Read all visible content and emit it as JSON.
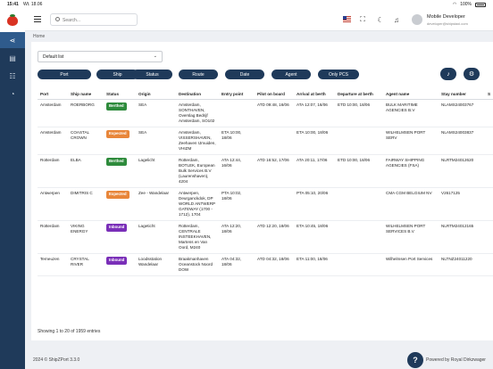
{
  "status_bar": {
    "time": "15:41",
    "date": "Wt. 18.06",
    "battery": "100%"
  },
  "nav": {
    "items": [
      "ship",
      "map",
      "users",
      "notifications"
    ],
    "active": 0
  },
  "header": {
    "search_placeholder": "Search...",
    "user_name": "Mobile Developer",
    "user_email": "developer@shipstaxi.com"
  },
  "breadcrumb": "Home",
  "list_select": "Default list",
  "filters": [
    "Port",
    "Ship",
    "Status",
    "Route",
    "Date",
    "Agent",
    "Only PCS"
  ],
  "columns": [
    "Port",
    "Ship name",
    "Status",
    "Origin",
    "Destination",
    "Entry point",
    "Pilot on board",
    "Arrival at berth",
    "Departure at berth",
    "Agent name",
    "Stay number",
    "S"
  ],
  "rows": [
    {
      "port": "Amsterdam",
      "ship": "ROERBORG",
      "status": "Berthed",
      "status_color": "#2e8b3c",
      "origin": "SEA",
      "destination": "Amsterdam, SONTHAVEN, Overslag Bedrijf Amsterdam, SO102",
      "entry": "",
      "pilot": "ATD 09:48, 16/06",
      "arrival": "ATA 12:07, 16/06",
      "departure": "ETD 10:00, 18/06",
      "agent": "BULK MARITIME AGENCIES B.V",
      "stay": "NLAMS24003767"
    },
    {
      "port": "Amsterdam",
      "ship": "COASTAL CROWN",
      "status": "Expected",
      "status_color": "#e8863a",
      "origin": "SEA",
      "destination": "Amsterdam, VISSERSHAVEN, Zeehaven IJmuiden, VHIZM",
      "entry": "ETA 10:00, 18/06",
      "pilot": "",
      "arrival": "ETA 10:00, 18/06",
      "departure": "",
      "agent": "WILHELMSEN PORT SERV",
      "stay": "NLAMS24003837"
    },
    {
      "port": "Rotterdam",
      "ship": "ELBA",
      "status": "Berthed",
      "status_color": "#2e8b3c",
      "origin": "Lagelicht",
      "destination": "Rotterdam, BOTLEK, European Bulk Services B.V (Laurenshaven), 4204",
      "entry": "ATA 12:44, 16/06",
      "pilot": "ATD 16:52, 17/06",
      "arrival": "ATA 20:11, 17/06",
      "departure": "ETD 10:00, 18/06",
      "agent": "FAIRWAY SHIPPING AGENCIES (FSA)",
      "stay": "NLRTM24012620"
    },
    {
      "port": "Antwerpen",
      "ship": "DIMITRIS C",
      "status": "Expected",
      "status_color": "#e8863a",
      "origin": "Zee - Wandelaar",
      "destination": "Antwerpen, Deurganckdok, DP WORLD ANTWERP GATEWAY (1700 - 1712), 1704",
      "entry": "PTA 10:02, 18/06",
      "pilot": "",
      "arrival": "PTA 05:10, 20/06",
      "departure": "",
      "agent": "CMA CGM BELGIUM NV",
      "stay": "V2617125"
    },
    {
      "port": "Rotterdam",
      "ship": "VIKING ENERGY",
      "status": "Inbound",
      "status_color": "#7a2fb8",
      "origin": "Lageticht",
      "destination": "Rotterdam, CENTRALE INSTEEKHAVEN, Martens en Van Oord, M240",
      "entry": "ATA 12:20, 18/06",
      "pilot": "ATD 12:20, 18/06",
      "arrival": "ETA 10:45, 18/06",
      "departure": "",
      "agent": "WILHELMSEN PORT SERVICES B.V",
      "stay": "NLRTM24012165"
    },
    {
      "port": "Terneuzen",
      "ship": "CRYSTAL RIVER",
      "status": "Inbound",
      "status_color": "#7a2fb8",
      "origin": "Loodsstation Wandelaar",
      "destination": "Braakmanhaven Oceanstock Noord DOW",
      "entry": "ATA 04:32, 18/06",
      "pilot": "ATD 04:32, 18/06",
      "arrival": "ETA 11:00, 18/06",
      "departure": "",
      "agent": "Wilhelmsen Port Services",
      "stay": "NLTNZ24011220"
    }
  ],
  "pagination": "Showing 1 to 20 of 1959 entries",
  "footer": {
    "copyright": "2024 © ShipZPort 3.3.0",
    "help": "?",
    "powered_by": "Powered by Royal Dirkzwager"
  }
}
